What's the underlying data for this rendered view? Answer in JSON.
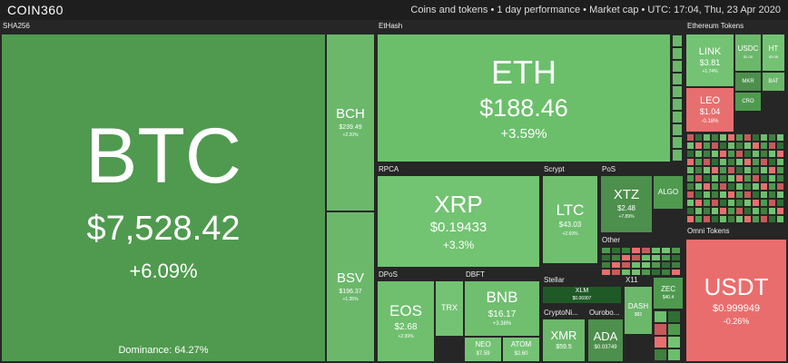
{
  "header": {
    "logo": "COIN360",
    "info": "Coins and tokens • 1 day performance • Market cap • UTC: 17:04, Thu, 23 Apr 2020"
  },
  "groups": [
    "SHA256",
    "EtHash",
    "Ethereum Tokens",
    "RPCA",
    "Scrypt",
    "PoS",
    "Other",
    "DPoS",
    "DBFT",
    "Stellar",
    "X11",
    "CryptoNi...",
    "Ourobo...",
    "Omni Tokens"
  ],
  "coins": [
    {
      "name": "BTC",
      "price": "$7,528.42",
      "change": "+6.09%",
      "dominance": "Dominance: 64.27%"
    },
    {
      "name": "BCH",
      "price": "$239.49",
      "change": "+2.20%"
    },
    {
      "name": "BSV",
      "price": "$196.37",
      "change": "+1.35%"
    },
    {
      "name": "ETH",
      "price": "$188.46",
      "change": "+3.59%"
    },
    {
      "name": "XRP",
      "price": "$0.19433",
      "change": "+3.3%"
    },
    {
      "name": "LTC",
      "price": "$43.03",
      "change": "+2.69%"
    },
    {
      "name": "XTZ",
      "price": "$2.48",
      "change": "+7.89%"
    },
    {
      "name": "ALGO"
    },
    {
      "name": "EOS",
      "price": "$2.68",
      "change": "+2.99%"
    },
    {
      "name": "TRX"
    },
    {
      "name": "BNB",
      "price": "$16.17",
      "change": "+3.38%"
    },
    {
      "name": "NEO",
      "price": "$7.59"
    },
    {
      "name": "ATOM",
      "price": "$2.60"
    },
    {
      "name": "XLM",
      "price": "$0.06907"
    },
    {
      "name": "XMR",
      "price": "$59.5"
    },
    {
      "name": "ADA",
      "price": "$0.03749"
    },
    {
      "name": "DASH",
      "price": "$82"
    },
    {
      "name": "ZEC",
      "price": "$40.4"
    },
    {
      "name": "LINK",
      "price": "$3.81",
      "change": "+1.74%"
    },
    {
      "name": "USDC",
      "price": "$1.00"
    },
    {
      "name": "HT",
      "price": "$3.98"
    },
    {
      "name": "LEO",
      "price": "$1.04",
      "change": "-0.18%"
    },
    {
      "name": "MKR"
    },
    {
      "name": "BAT"
    },
    {
      "name": "CRO"
    },
    {
      "name": "USDT",
      "price": "$0.999949",
      "change": "-0.26%"
    }
  ]
}
